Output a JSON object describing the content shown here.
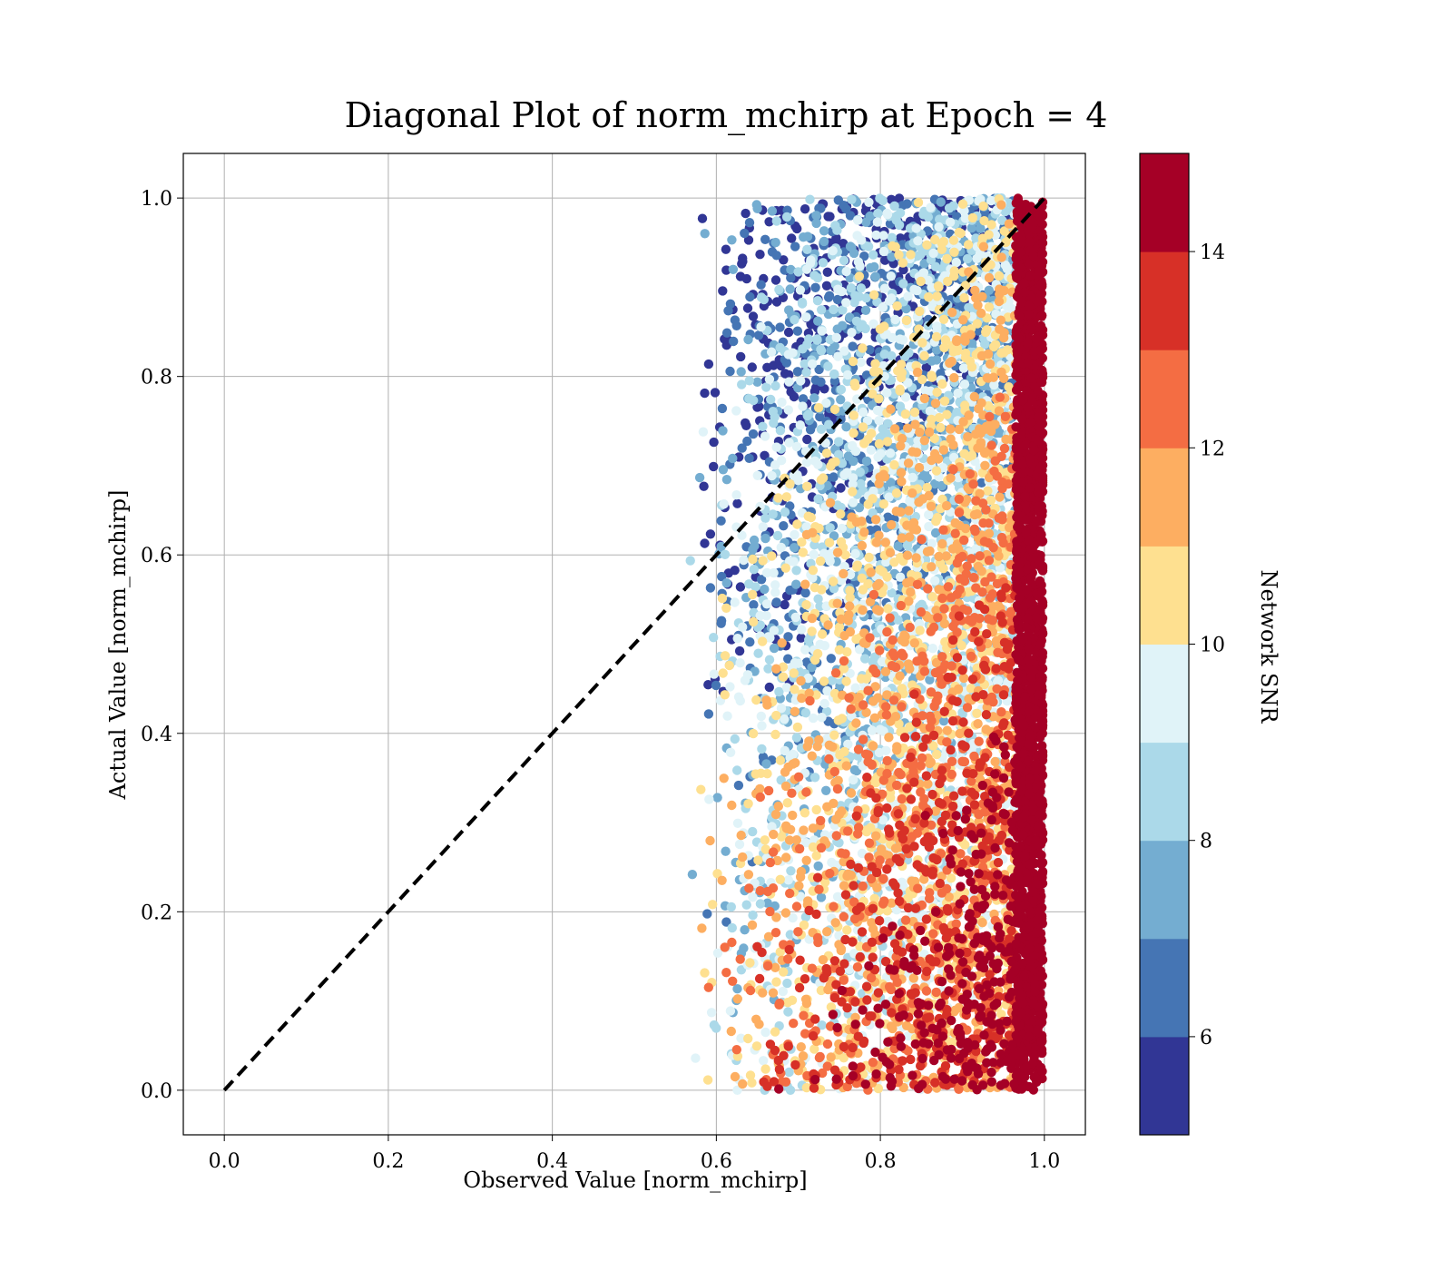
{
  "chart_data": {
    "type": "scatter",
    "title": "Diagonal Plot of norm_mchirp at Epoch = 4",
    "xlabel": "Observed Value [norm_mchirp]",
    "ylabel": "Actual Value [norm_mchirp]",
    "xlim": [
      -0.05,
      1.05
    ],
    "ylim": [
      -0.05,
      1.05
    ],
    "x_ticks": [
      "0.0",
      "0.2",
      "0.4",
      "0.6",
      "0.8",
      "1.0"
    ],
    "y_ticks": [
      "0.0",
      "0.2",
      "0.4",
      "0.6",
      "0.8",
      "1.0"
    ],
    "grid": true,
    "reference_line": {
      "style": "dashed",
      "color": "#000000",
      "from": [
        0.0,
        0.0
      ],
      "to": [
        1.0,
        1.0
      ]
    },
    "colorbar": {
      "label": "Network SNR",
      "range": [
        5,
        15
      ],
      "ticks": [
        "6",
        "8",
        "10",
        "12",
        "14"
      ],
      "colormap": "RdYlBu_r",
      "colors": [
        "#313695",
        "#4575b4",
        "#74add1",
        "#abd9e9",
        "#e0f3f8",
        "#fee090",
        "#fdae61",
        "#f46d43",
        "#d73027",
        "#a50026"
      ]
    },
    "scatter_description": {
      "x_range": [
        0.55,
        1.0
      ],
      "y_range": [
        0.0,
        1.0
      ],
      "high_snr_cluster_x": [
        0.96,
        1.0
      ]
    }
  }
}
